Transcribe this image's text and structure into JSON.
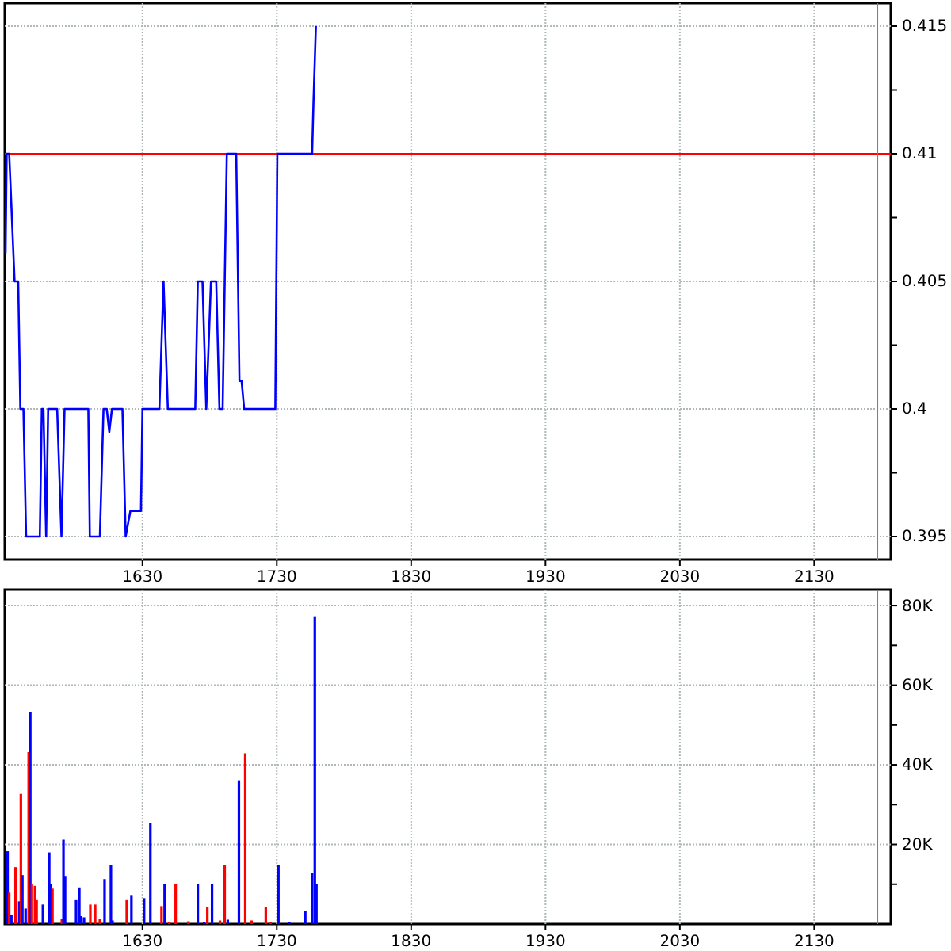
{
  "chart_data": [
    {
      "type": "line",
      "xlim": [
        1527.5,
        2187
      ],
      "ylim": [
        0.3941,
        0.4159
      ],
      "xticks": [
        1630,
        1730,
        1830,
        1930,
        2030,
        2130
      ],
      "yticks": [
        0.395,
        {
          "value": 0.3975,
          "label": null
        },
        0.4,
        {
          "value": 0.4025,
          "label": null
        },
        0.405,
        {
          "value": 0.4075,
          "label": null
        },
        0.41,
        {
          "value": 0.4125,
          "label": null
        },
        0.415
      ],
      "grid": true,
      "ref_lines": [
        {
          "axis": "y",
          "value": 0.41,
          "color": "#ff0000"
        },
        {
          "axis": "x",
          "value": 2177,
          "color": "#808080"
        }
      ],
      "series": [
        {
          "color": "#0000ff",
          "x": [
            1528.1,
            1528.9,
            1530.8,
            1534.8,
            1537.5,
            1539.1,
            1541.4,
            1543.4,
            1553.6,
            1555.1,
            1556.3,
            1558.3,
            1559.8,
            1566.5,
            1569.7,
            1572,
            1589.7,
            1590.8,
            1598.3,
            1601,
            1603.4,
            1605.3,
            1607.3,
            1615.1,
            1617.5,
            1621,
            1628.9,
            1630,
            1642.6,
            1645.7,
            1648.9,
            1669.3,
            1671.2,
            1674.7,
            1677.5,
            1681,
            1684.9,
            1687.3,
            1689.7,
            1692.8,
            1699.8,
            1702.2,
            1703.8,
            1705.7,
            1728.9,
            1730.4,
            1754.7,
            1756.3,
            1757.3,
            1759.1
          ],
          "values": [
            0.4061,
            0.41,
            0.41,
            0.405,
            0.405,
            0.4,
            0.4,
            0.395,
            0.395,
            0.4,
            0.4,
            0.395,
            0.4,
            0.4,
            0.395,
            0.4,
            0.4,
            0.395,
            0.395,
            0.4,
            0.4,
            0.3991,
            0.4,
            0.4,
            0.395,
            0.396,
            0.396,
            0.4,
            0.4,
            0.405,
            0.4,
            0.4,
            0.405,
            0.405,
            0.4,
            0.405,
            0.405,
            0.4,
            0.4,
            0.41,
            0.41,
            0.4011,
            0.4011,
            0.4,
            0.4,
            0.41,
            0.41,
            0.41,
            0.412,
            0.415
          ]
        }
      ]
    },
    {
      "type": "bar",
      "xlim": [
        1527.5,
        2187
      ],
      "ylim": [
        0,
        84000
      ],
      "xticks": [
        1630,
        1730,
        1830,
        1930,
        2030,
        2130
      ],
      "yticks": [
        {
          "value": 10000,
          "label": null
        },
        {
          "value": 20000,
          "label": "20K"
        },
        {
          "value": 30000,
          "label": null
        },
        {
          "value": 40000,
          "label": "40K"
        },
        {
          "value": 50000,
          "label": null
        },
        {
          "value": 60000,
          "label": "60K"
        },
        {
          "value": 70000,
          "label": null
        },
        {
          "value": 80000,
          "label": "80K"
        }
      ],
      "grid": true,
      "ref_lines": [
        {
          "axis": "x",
          "value": 2177,
          "color": "#808080"
        }
      ],
      "x": [
        1529.6,
        1530.8,
        1532.4,
        1535.5,
        1538.3,
        1539.5,
        1540.6,
        1543,
        1545.3,
        1546.5,
        1547.7,
        1550,
        1551.2,
        1555.9,
        1560.6,
        1561.8,
        1563,
        1570,
        1571.2,
        1572.4,
        1580.6,
        1583,
        1584.2,
        1586.5,
        1591.2,
        1594.8,
        1598.3,
        1601.8,
        1606.5,
        1607.7,
        1618.3,
        1621.8,
        1631.2,
        1635.9,
        1644.2,
        1646.5,
        1650,
        1654.7,
        1664.2,
        1671.2,
        1675.9,
        1678.3,
        1681.8,
        1687.7,
        1691.2,
        1693.5,
        1701.8,
        1706.5,
        1711.2,
        1721.8,
        1725.3,
        1731.2,
        1739.4,
        1751.2,
        1756.3,
        1758.3,
        1759.5
      ],
      "values": [
        18300,
        7900,
        2300,
        14300,
        5700,
        32700,
        12300,
        3900,
        43200,
        53300,
        10000,
        9600,
        6000,
        4900,
        18000,
        10000,
        8900,
        1200,
        21200,
        12100,
        6000,
        9200,
        2000,
        1700,
        4900,
        4900,
        1300,
        11300,
        14800,
        900,
        6000,
        7300,
        6500,
        25300,
        4500,
        10100,
        500,
        10100,
        700,
        10100,
        500,
        4300,
        10100,
        900,
        14900,
        1100,
        36100,
        42900,
        900,
        4300,
        500,
        14900,
        500,
        3300,
        12900,
        77300,
        10100
      ],
      "colors": [
        "#0000ff",
        "#ff0000",
        "#0000ff",
        "#ff0000",
        "#0000ff",
        "#ff0000",
        "#0000ff",
        "#0000ff",
        "#ff0000",
        "#0000ff",
        "#ff0000",
        "#ff0000",
        "#ff0000",
        "#0000ff",
        "#0000ff",
        "#0000ff",
        "#ff0000",
        "#ff0000",
        "#0000ff",
        "#0000ff",
        "#0000ff",
        "#0000ff",
        "#0000ff",
        "#0000ff",
        "#ff0000",
        "#ff0000",
        "#ff0000",
        "#0000ff",
        "#0000ff",
        "#0000ff",
        "#ff0000",
        "#0000ff",
        "#0000ff",
        "#0000ff",
        "#ff0000",
        "#0000ff",
        "#ff0000",
        "#ff0000",
        "#ff0000",
        "#0000ff",
        "#0000ff",
        "#ff0000",
        "#0000ff",
        "#ff0000",
        "#ff0000",
        "#0000ff",
        "#0000ff",
        "#ff0000",
        "#ff0000",
        "#ff0000",
        "#ff0000",
        "#0000ff",
        "#0000ff",
        "#0000ff",
        "#0000ff",
        "#0000ff",
        "#0000ff"
      ]
    }
  ]
}
